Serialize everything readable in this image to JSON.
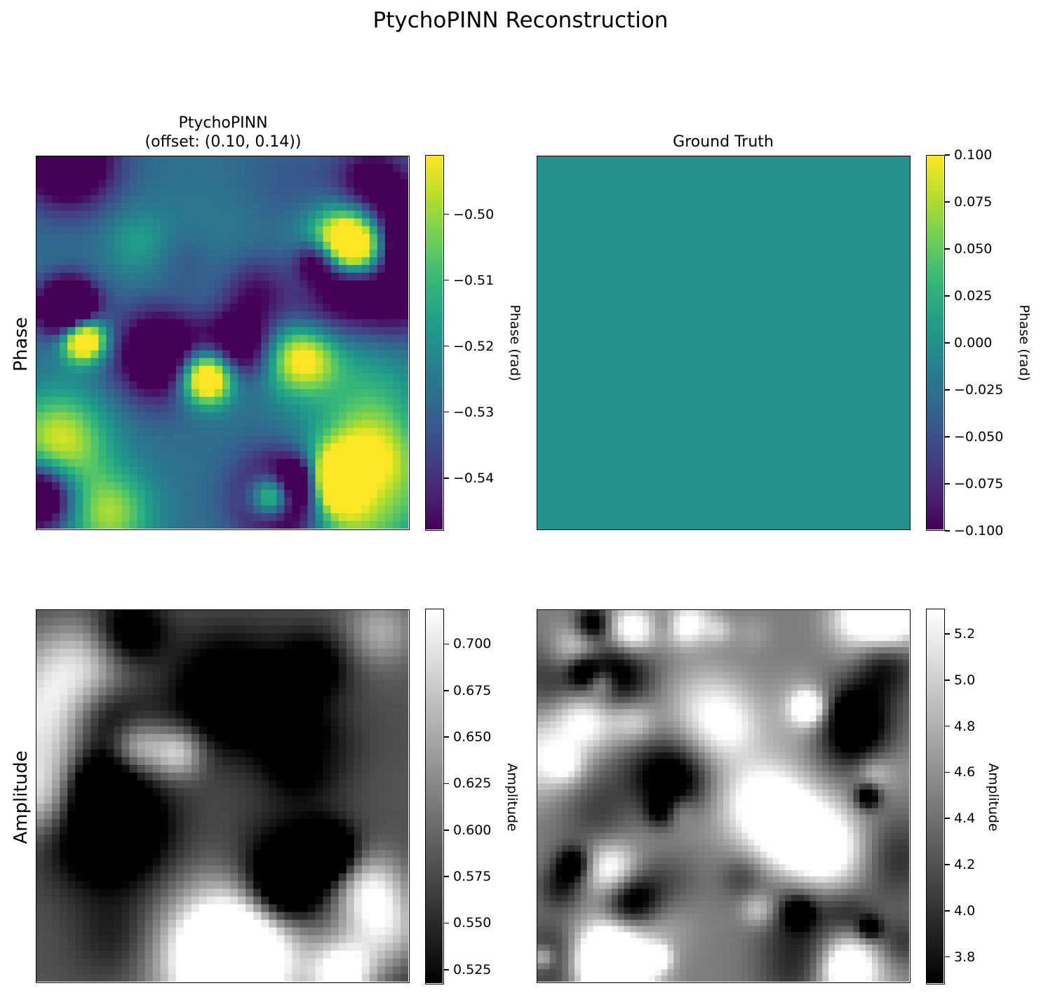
{
  "figure_title": "PtychoPINN Reconstruction",
  "chart_data": [
    {
      "type": "heatmap",
      "title": "PtychoPINN\n(offset: (0.10, 0.14))",
      "title_line1": "PtychoPINN",
      "title_line2": "(offset: (0.10, 0.14))",
      "row_label": "Phase",
      "colormap": "viridis",
      "colorbar_label": "Phase (rad)",
      "vmin": -0.548,
      "vmax": -0.491,
      "colorbar_ticks": [
        "−0.50",
        "−0.51",
        "−0.52",
        "−0.53",
        "−0.54"
      ],
      "colorbar_tick_values": [
        -0.5,
        -0.51,
        -0.52,
        -0.53,
        -0.54
      ]
    },
    {
      "type": "heatmap",
      "title": "Ground Truth",
      "colormap": "viridis",
      "colorbar_label": "Phase (rad)",
      "vmin": -0.1,
      "vmax": 0.1,
      "uniform_value": 0.0,
      "colorbar_ticks": [
        "0.100",
        "0.075",
        "0.050",
        "0.025",
        "0.000",
        "−0.025",
        "−0.050",
        "−0.075",
        "−0.100"
      ],
      "colorbar_tick_values": [
        0.1,
        0.075,
        0.05,
        0.025,
        0.0,
        -0.025,
        -0.05,
        -0.075,
        -0.1
      ]
    },
    {
      "type": "heatmap",
      "row_label": "Amplitude",
      "colormap": "gray",
      "colorbar_label": "Amplitude",
      "vmin": 0.517,
      "vmax": 0.719,
      "colorbar_ticks": [
        "0.700",
        "0.675",
        "0.650",
        "0.625",
        "0.600",
        "0.575",
        "0.550",
        "0.525"
      ],
      "colorbar_tick_values": [
        0.7,
        0.675,
        0.65,
        0.625,
        0.6,
        0.575,
        0.55,
        0.525
      ]
    },
    {
      "type": "heatmap",
      "colormap": "gray",
      "colorbar_label": "Amplitude",
      "vmin": 3.68,
      "vmax": 5.31,
      "colorbar_ticks": [
        "5.2",
        "5.0",
        "4.8",
        "4.6",
        "4.4",
        "4.2",
        "4.0",
        "3.8"
      ],
      "colorbar_tick_values": [
        5.2,
        5.0,
        4.8,
        4.6,
        4.4,
        4.2,
        4.0,
        3.8
      ]
    }
  ]
}
